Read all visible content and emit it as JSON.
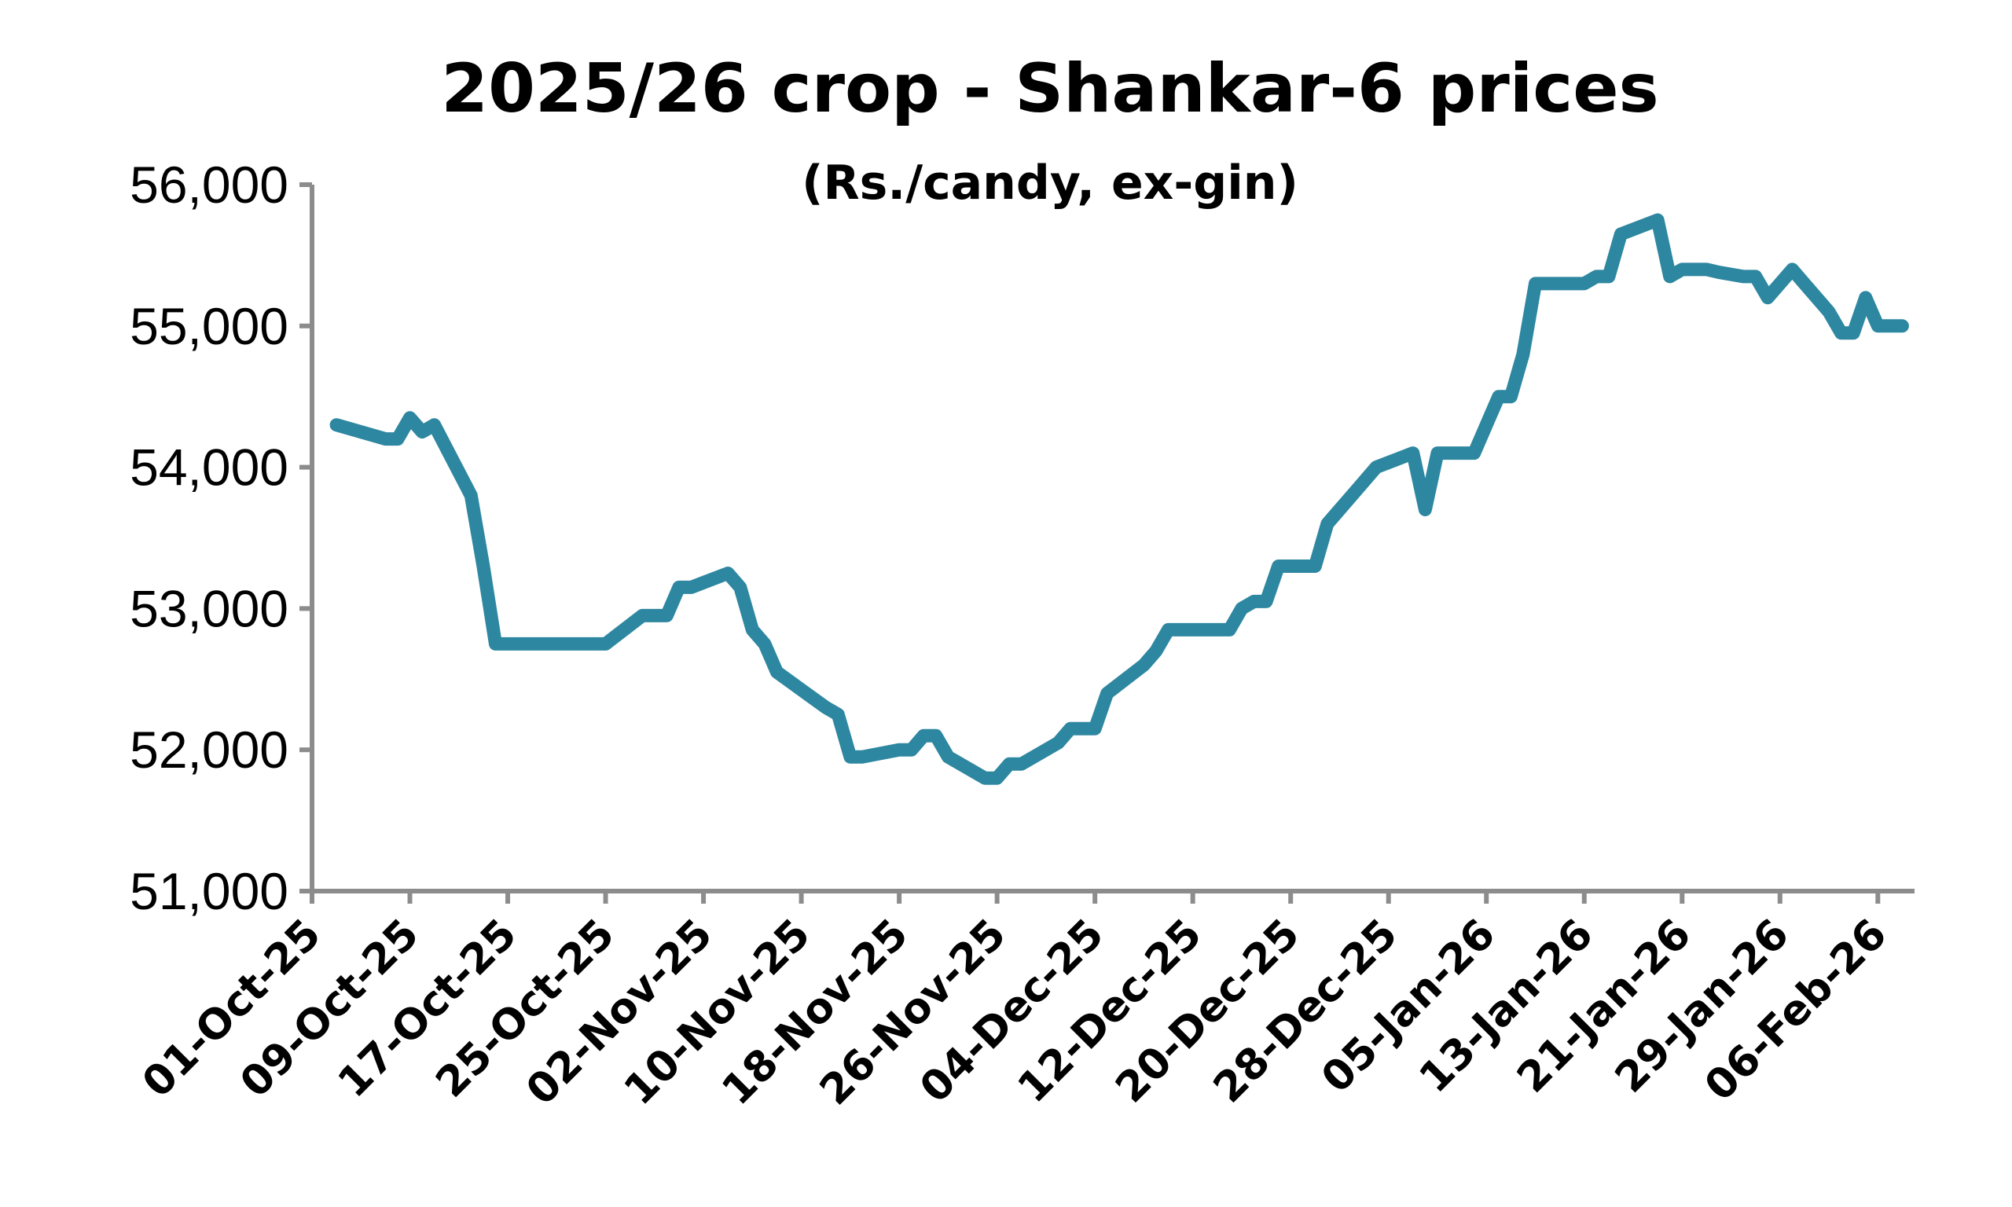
{
  "chart_data": {
    "type": "line",
    "title": "2025/26 crop - Shankar-6 prices",
    "subtitle": "(Rs./candy, ex-gin)",
    "xlabel": "",
    "ylabel": "",
    "ylim": [
      51000,
      56000
    ],
    "y_ticks": [
      "51,000",
      "52,000",
      "53,000",
      "54,000",
      "55,000",
      "56,000"
    ],
    "y_tick_values": [
      51000,
      52000,
      53000,
      54000,
      55000,
      56000
    ],
    "x_range": [
      "2025-10-01",
      "2026-02-09"
    ],
    "x_ticks": [
      "01-Oct-25",
      "09-Oct-25",
      "17-Oct-25",
      "25-Oct-25",
      "02-Nov-25",
      "10-Nov-25",
      "18-Nov-25",
      "26-Nov-25",
      "04-Dec-25",
      "12-Dec-25",
      "20-Dec-25",
      "28-Dec-25",
      "05-Jan-26",
      "13-Jan-26",
      "21-Jan-26",
      "29-Jan-26",
      "06-Feb-26"
    ],
    "x_tick_dates": [
      "2025-10-01",
      "2025-10-09",
      "2025-10-17",
      "2025-10-25",
      "2025-11-02",
      "2025-11-10",
      "2025-11-18",
      "2025-11-26",
      "2025-12-04",
      "2025-12-12",
      "2025-12-20",
      "2025-12-28",
      "2026-01-05",
      "2026-01-13",
      "2026-01-21",
      "2026-01-29",
      "2026-02-06"
    ],
    "grid": false,
    "legend": "none",
    "colors": {
      "line": "#2E87A0",
      "axis": "#8C8C8C"
    },
    "series": [
      {
        "x": [
          "2025-10-03",
          "2025-10-07",
          "2025-10-08",
          "2025-10-09",
          "2025-10-10",
          "2025-10-11",
          "2025-10-14",
          "2025-10-15",
          "2025-10-16",
          "2025-10-17",
          "2025-10-23",
          "2025-10-25",
          "2025-10-28",
          "2025-10-30",
          "2025-10-31",
          "2025-11-01",
          "2025-11-04",
          "2025-11-05",
          "2025-11-06",
          "2025-11-07",
          "2025-11-08",
          "2025-11-12",
          "2025-11-13",
          "2025-11-14",
          "2025-11-15",
          "2025-11-18",
          "2025-11-19",
          "2025-11-20",
          "2025-11-21",
          "2025-11-22",
          "2025-11-25",
          "2025-11-26",
          "2025-11-27",
          "2025-11-28",
          "2025-12-01",
          "2025-12-02",
          "2025-12-03",
          "2025-12-04",
          "2025-12-05",
          "2025-12-08",
          "2025-12-09",
          "2025-12-10",
          "2025-12-11",
          "2025-12-12",
          "2025-12-15",
          "2025-12-16",
          "2025-12-17",
          "2025-12-18",
          "2025-12-19",
          "2025-12-22",
          "2025-12-23",
          "2025-12-24",
          "2025-12-26",
          "2025-12-27",
          "2025-12-30",
          "2025-12-31",
          "2026-01-01",
          "2026-01-02",
          "2026-01-04",
          "2026-01-05",
          "2026-01-06",
          "2026-01-07",
          "2026-01-08",
          "2026-01-09",
          "2026-01-12",
          "2026-01-13",
          "2026-01-14",
          "2026-01-15",
          "2026-01-16",
          "2026-01-19",
          "2026-01-20",
          "2026-01-21",
          "2026-01-23",
          "2026-01-24",
          "2026-01-26",
          "2026-01-27",
          "2026-01-28",
          "2026-01-30",
          "2026-01-31",
          "2026-02-02",
          "2026-02-03",
          "2026-02-04",
          "2026-02-05",
          "2026-02-06",
          "2026-02-07",
          "2026-02-08"
        ],
        "values": [
          54300,
          54200,
          54200,
          54350,
          54250,
          54300,
          53800,
          53300,
          52750,
          52750,
          52750,
          52750,
          52950,
          52950,
          53150,
          53150,
          53250,
          53150,
          52850,
          52750,
          52550,
          52300,
          52250,
          51950,
          51950,
          52000,
          52000,
          52100,
          52100,
          51950,
          51800,
          51800,
          51900,
          51900,
          52050,
          52150,
          52150,
          52150,
          52400,
          52600,
          52700,
          52850,
          52850,
          52850,
          52850,
          53000,
          53050,
          53050,
          53300,
          53300,
          53600,
          53700,
          53900,
          54000,
          54100,
          53700,
          54100,
          54100,
          54100,
          54300,
          54500,
          54500,
          54800,
          55300,
          55300,
          55300,
          55350,
          55350,
          55650,
          55750,
          55350,
          55400,
          55400,
          55380,
          55350,
          55350,
          55200,
          55400,
          55300,
          55100,
          54950,
          54950,
          55200,
          55000,
          55000,
          55000
        ]
      }
    ]
  }
}
